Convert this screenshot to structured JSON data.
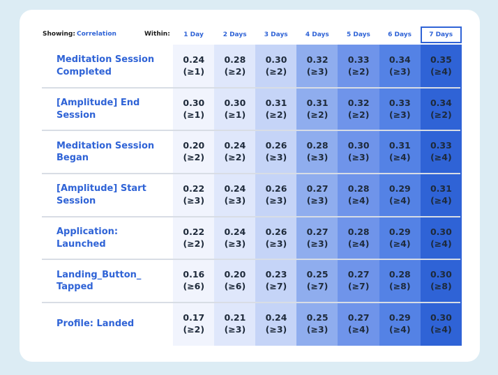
{
  "filters": {
    "showing_label": "Showing:",
    "showing_value": "Correlation",
    "within_label": "Within:"
  },
  "columns": [
    "1 Day",
    "2 Days",
    "3 Days",
    "4 Days",
    "5 Days",
    "6 Days",
    "7 Days"
  ],
  "selected_column": "7 Days",
  "column_colors": [
    "#f1f4fd",
    "#dfe7fb",
    "#c5d4f7",
    "#8fadee",
    "#6f94ea",
    "#5482e5",
    "#2f63d6"
  ],
  "rows": [
    {
      "label": "Meditation Session Completed",
      "values": [
        [
          "0.24",
          "(≥1)"
        ],
        [
          "0.28",
          "(≥2)"
        ],
        [
          "0.30",
          "(≥2)"
        ],
        [
          "0.32",
          "(≥3)"
        ],
        [
          "0.33",
          "(≥2)"
        ],
        [
          "0.34",
          "(≥3)"
        ],
        [
          "0.35",
          "(≥4)"
        ]
      ]
    },
    {
      "label": "[Amplitude] End Session",
      "values": [
        [
          "0.30",
          "(≥1)"
        ],
        [
          "0.30",
          "(≥1)"
        ],
        [
          "0.31",
          "(≥2)"
        ],
        [
          "0.31",
          "(≥2)"
        ],
        [
          "0.32",
          "(≥2)"
        ],
        [
          "0.33",
          "(≥3)"
        ],
        [
          "0.34",
          "(≥2)"
        ]
      ]
    },
    {
      "label": "Meditation Session Began",
      "values": [
        [
          "0.20",
          "(≥2)"
        ],
        [
          "0.24",
          "(≥2)"
        ],
        [
          "0.26",
          "(≥3)"
        ],
        [
          "0.28",
          "(≥3)"
        ],
        [
          "0.30",
          "(≥3)"
        ],
        [
          "0.31",
          "(≥4)"
        ],
        [
          "0.33",
          "(≥4)"
        ]
      ]
    },
    {
      "label": "[Amplitude] Start Session",
      "values": [
        [
          "0.22",
          "(≥3)"
        ],
        [
          "0.24",
          "(≥3)"
        ],
        [
          "0.26",
          "(≥3)"
        ],
        [
          "0.27",
          "(≥3)"
        ],
        [
          "0.28",
          "(≥4)"
        ],
        [
          "0.29",
          "(≥4)"
        ],
        [
          "0.31",
          "(≥4)"
        ]
      ]
    },
    {
      "label": "Application: Launched",
      "values": [
        [
          "0.22",
          "(≥2)"
        ],
        [
          "0.24",
          "(≥3)"
        ],
        [
          "0.26",
          "(≥3)"
        ],
        [
          "0.27",
          "(≥3)"
        ],
        [
          "0.28",
          "(≥4)"
        ],
        [
          "0.29",
          "(≥4)"
        ],
        [
          "0.30",
          "(≥4)"
        ]
      ]
    },
    {
      "label": "Landing_Button_ Tapped",
      "values": [
        [
          "0.16",
          "(≥6)"
        ],
        [
          "0.20",
          "(≥6)"
        ],
        [
          "0.23",
          "(≥7)"
        ],
        [
          "0.25",
          "(≥7)"
        ],
        [
          "0.27",
          "(≥7)"
        ],
        [
          "0.28",
          "(≥8)"
        ],
        [
          "0.30",
          "(≥8)"
        ]
      ]
    },
    {
      "label": "Profile: Landed",
      "values": [
        [
          "0.17",
          "(≥2)"
        ],
        [
          "0.21",
          "(≥3)"
        ],
        [
          "0.24",
          "(≥3)"
        ],
        [
          "0.25",
          "(≥3)"
        ],
        [
          "0.27",
          "(≥4)"
        ],
        [
          "0.29",
          "(≥4)"
        ],
        [
          "0.30",
          "(≥4)"
        ]
      ]
    }
  ]
}
